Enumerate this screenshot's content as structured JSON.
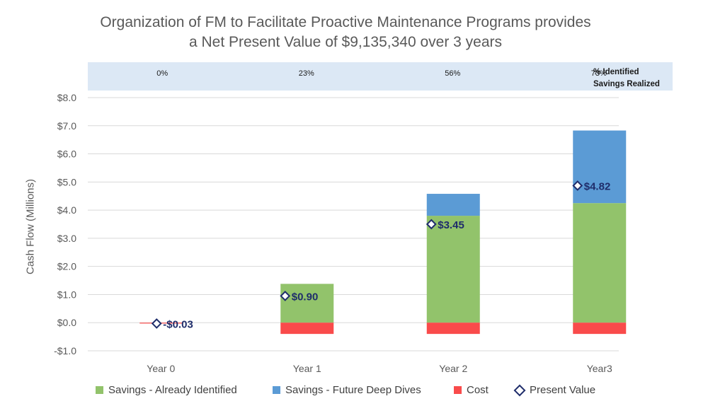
{
  "title_line1": "Organization of FM to Facilitate Proactive Maintenance Programs provides",
  "title_line2": "a Net Present Value of $9,135,340 over 3 years",
  "band": {
    "label_line1": "% Identified",
    "label_line2": "Savings Realized",
    "values": [
      "0%",
      "23%",
      "56%",
      "73%"
    ]
  },
  "chart_data": {
    "type": "bar",
    "stacked": true,
    "title": "Organization of FM to Facilitate Proactive Maintenance Programs provides a Net Present Value of $9,135,340 over 3 years",
    "ylabel": "Cash Flow (Millions)",
    "xlabel": "",
    "ylim": [
      -1.0,
      8.0
    ],
    "yticks": [
      -1.0,
      0.0,
      1.0,
      2.0,
      3.0,
      4.0,
      5.0,
      6.0,
      7.0,
      8.0
    ],
    "ytick_labels": [
      "-$1.0",
      "$0.0",
      "$1.0",
      "$2.0",
      "$3.0",
      "$4.0",
      "$5.0",
      "$6.0",
      "$7.0",
      "$8.0"
    ],
    "categories": [
      "Year 0",
      "Year 1",
      "Year 2",
      "Year3"
    ],
    "grid": true,
    "legend_position": "bottom",
    "series": [
      {
        "name": "Savings - Already Identified",
        "color": "#92c36b",
        "values": [
          0.0,
          1.38,
          3.8,
          4.25
        ]
      },
      {
        "name": "Savings - Future Deep Dives",
        "color": "#5b9bd5",
        "values": [
          0.0,
          0.0,
          0.78,
          2.58
        ]
      },
      {
        "name": "Cost",
        "color": "#f94b4b",
        "values": [
          -0.03,
          -0.4,
          -0.4,
          -0.4
        ]
      }
    ],
    "present_value": {
      "name": "Present Value",
      "color": "#1f2d6b",
      "values": [
        -0.03,
        0.9,
        3.45,
        4.82
      ],
      "labels": [
        "-$0.03",
        "$0.90",
        "$3.45",
        "$4.82"
      ]
    }
  }
}
